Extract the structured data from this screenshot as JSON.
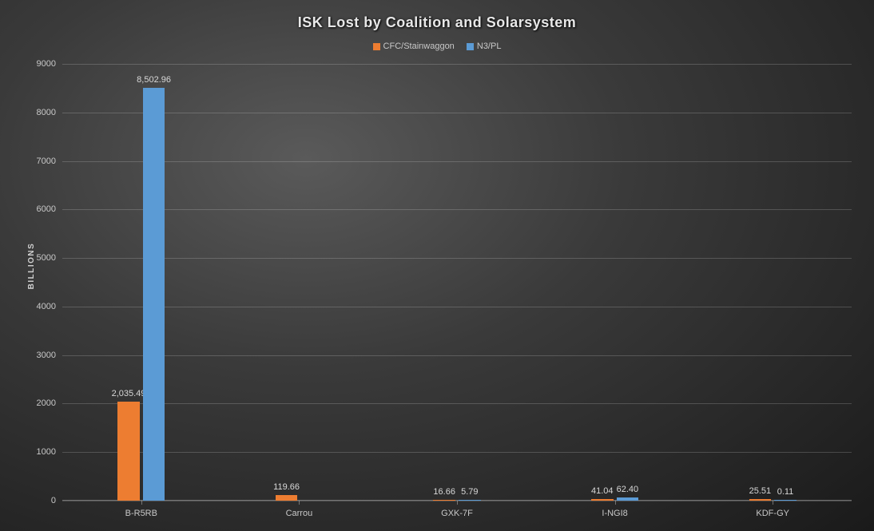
{
  "chart": {
    "type": "bar",
    "title": "ISK Lost by Coalition  and  Solarsystem",
    "title_fontsize": 18,
    "y_axis_title": "BILLIONS",
    "background": "radial-gradient dark gray",
    "text_color": "#d0d0d0",
    "grid_color": "rgba(255,255,255,0.18)",
    "series": [
      {
        "name": "CFC/Stainwaggon",
        "color": "#ed7d31"
      },
      {
        "name": "N3/PL",
        "color": "#5b9bd5"
      }
    ],
    "categories": [
      "B-R5RB",
      "Carrou",
      "GXK-7F",
      "I-NGI8",
      "KDF-GY"
    ],
    "values": {
      "CFC/Stainwaggon": [
        2035.49,
        119.66,
        16.66,
        41.04,
        25.51
      ],
      "N3/PL": [
        8502.96,
        null,
        5.79,
        62.4,
        0.11
      ]
    },
    "value_labels": {
      "CFC/Stainwaggon": [
        "2,035.49",
        "119.66",
        "16.66",
        "41.04",
        "25.51"
      ],
      "N3/PL": [
        "8,502.96",
        "",
        "5.79",
        "62.40",
        "0.11"
      ]
    },
    "ylim": [
      0,
      9000
    ],
    "ytick_step": 1000,
    "y_ticks": [
      0,
      1000,
      2000,
      3000,
      4000,
      5000,
      6000,
      7000,
      8000,
      9000
    ],
    "bar_width_pct": 14,
    "bar_gap_pct": 2,
    "label_fontsize": 11
  }
}
